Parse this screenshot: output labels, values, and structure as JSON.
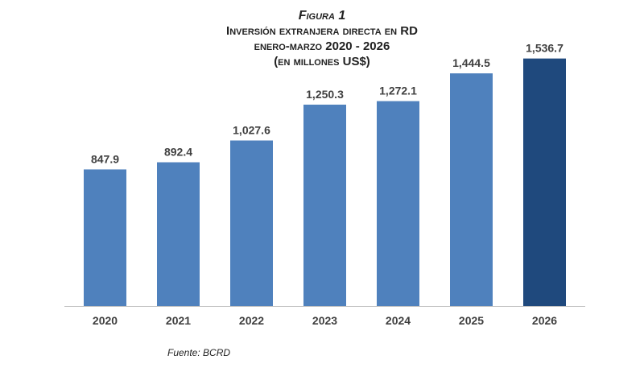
{
  "figure_label": "Figura 1",
  "title_line1": "Inversión extranjera directa en RD",
  "title_line2": "enero-marzo 2020 - 2026",
  "title_line3": "(en millones US$)",
  "source": "Fuente: BCRD",
  "chart_data": {
    "type": "bar",
    "title": "Inversión extranjera directa en RD",
    "subtitle": "enero-marzo 2020 - 2026 (en millones US$)",
    "categories": [
      "2020",
      "2021",
      "2022",
      "2023",
      "2024",
      "2025",
      "2026"
    ],
    "values": [
      847.9,
      892.4,
      1027.6,
      1250.3,
      1272.1,
      1444.5,
      1536.7
    ],
    "value_labels": [
      "847.9",
      "892.4",
      "1,027.6",
      "1,250.3",
      "1,272.1",
      "1,444.5",
      "1,536.7"
    ],
    "xlabel": "",
    "ylabel": "",
    "ylim": [
      0,
      1700
    ],
    "grid": false,
    "legend": "none",
    "colors": {
      "bar": "#4f81bd",
      "highlight": "#1f497d",
      "label": "#404040",
      "axis": "#bfbfbf"
    },
    "highlight_index": 6
  }
}
